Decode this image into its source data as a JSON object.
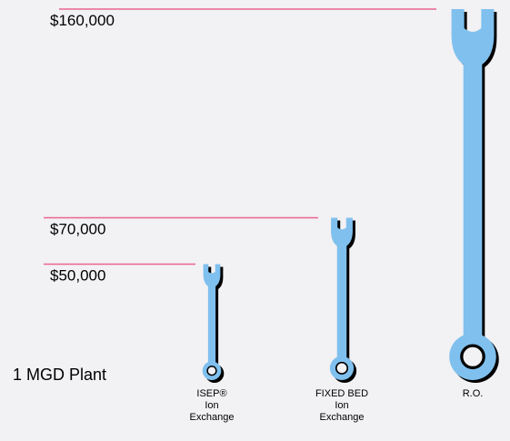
{
  "chart_data": {
    "type": "pictograph",
    "categories": [
      [
        "ISEP®",
        "Ion",
        "Exchange"
      ],
      [
        "FIXED BED",
        "Ion",
        "Exchange"
      ],
      [
        "R.O."
      ]
    ],
    "values": [
      50000,
      70000,
      160000
    ],
    "value_labels": [
      "$50,000",
      "$70,000",
      "$160,000"
    ],
    "annotation": "1 MGD Plant",
    "color": "#7fc0ee",
    "line_color": "#e8678e"
  }
}
